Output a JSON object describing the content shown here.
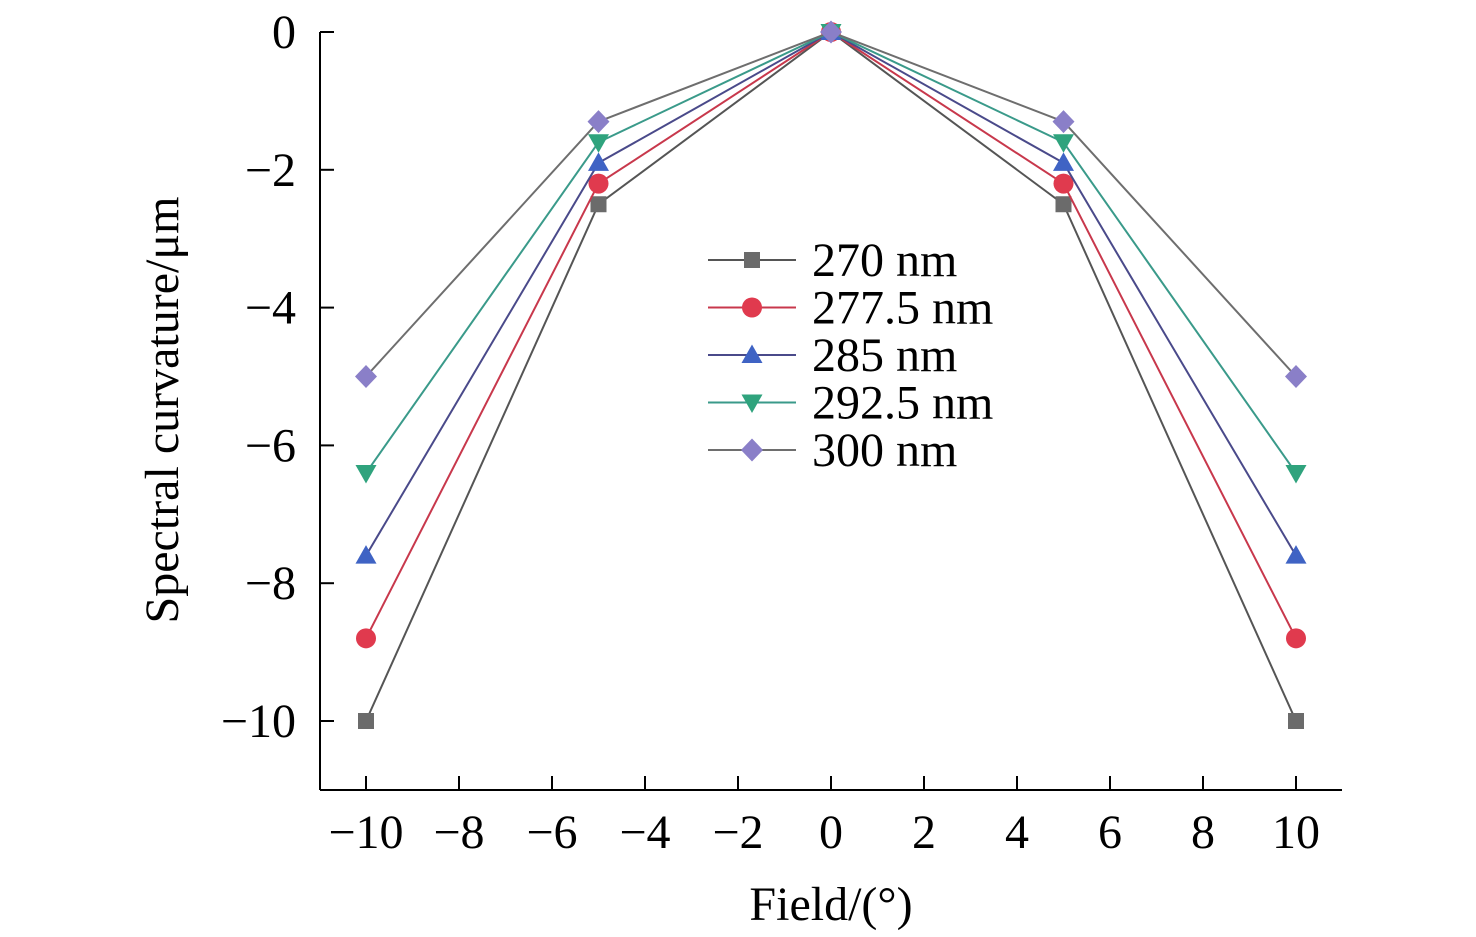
{
  "chart_data": {
    "type": "line",
    "xlabel": "Field/(°)",
    "ylabel": "Spectral curvature/μm",
    "xlim": [
      -11,
      11
    ],
    "ylim": [
      -11,
      0
    ],
    "xticks": [
      -10,
      -8,
      -6,
      -4,
      -2,
      0,
      2,
      4,
      6,
      8,
      10
    ],
    "yticks": [
      0,
      -2,
      -4,
      -6,
      -8,
      -10
    ],
    "xtick_labels": [
      "−10",
      "−8",
      "−6",
      "−4",
      "−2",
      "0",
      "2",
      "4",
      "6",
      "8",
      "10"
    ],
    "ytick_labels": [
      "0",
      "−2",
      "−4",
      "−6",
      "−8",
      "−10"
    ],
    "grid": false,
    "legend_position": "center",
    "x": [
      -10,
      -5,
      0,
      5,
      10
    ],
    "series": [
      {
        "name": "270 nm",
        "values": [
          -10,
          -2.5,
          0,
          -2.5,
          -10
        ],
        "marker": "square",
        "marker_color": "#6b6b6b",
        "line_color": "#555555"
      },
      {
        "name": "277.5 nm",
        "values": [
          -8.8,
          -2.2,
          0,
          -2.2,
          -8.8
        ],
        "marker": "circle",
        "marker_color": "#e03a4e",
        "line_color": "#c8384c"
      },
      {
        "name": "285 nm",
        "values": [
          -7.6,
          -1.9,
          0,
          -1.9,
          -7.6
        ],
        "marker": "triangle-up",
        "marker_color": "#3f63c4",
        "line_color": "#4a4a8a"
      },
      {
        "name": "292.5 nm",
        "values": [
          -6.4,
          -1.6,
          0,
          -1.6,
          -6.4
        ],
        "marker": "triangle-down",
        "marker_color": "#2fa37d",
        "line_color": "#3a9a8a"
      },
      {
        "name": "300 nm",
        "values": [
          -5,
          -1.3,
          0,
          -1.3,
          -5
        ],
        "marker": "diamond",
        "marker_color": "#8a7fc8",
        "line_color": "#6e6e6e"
      }
    ]
  }
}
